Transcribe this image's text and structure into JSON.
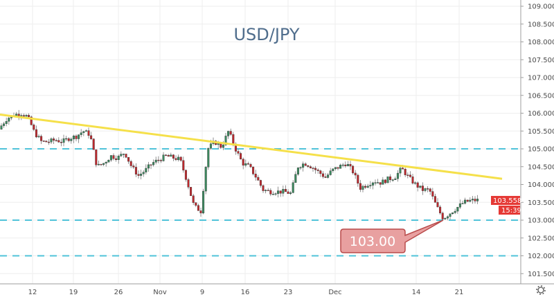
{
  "chart_data": {
    "type": "candlestick",
    "title": "USD/JPY",
    "y_ticks": [
      "109.000",
      "108.500",
      "108.000",
      "107.500",
      "107.000",
      "106.500",
      "106.000",
      "105.500",
      "105.000",
      "104.500",
      "104.000",
      "103.500",
      "103.000",
      "102.500",
      "102.000",
      "101.500"
    ],
    "ylim": [
      101.3,
      109.2
    ],
    "x_ticks": [
      "12",
      "19",
      "26",
      "Nov",
      "9",
      "16",
      "23",
      "Dec",
      "14",
      "21"
    ],
    "close_samples": [
      105.6,
      105.85,
      105.95,
      106.0,
      105.9,
      105.45,
      105.2,
      105.2,
      105.25,
      105.2,
      105.3,
      105.35,
      105.5,
      105.4,
      104.5,
      104.6,
      104.8,
      104.75,
      104.9,
      104.5,
      104.25,
      104.4,
      104.6,
      104.7,
      104.8,
      104.75,
      104.7,
      104.1,
      103.4,
      103.25,
      105.0,
      105.2,
      105.05,
      105.5,
      105.0,
      104.6,
      104.5,
      104.2,
      103.85,
      103.8,
      103.8,
      103.8,
      103.75,
      104.5,
      104.6,
      104.5,
      104.35,
      104.2,
      104.4,
      104.5,
      104.6,
      104.35,
      103.9,
      104.0,
      104.1,
      104.05,
      104.15,
      104.2,
      104.45,
      104.2,
      104.0,
      103.85,
      103.85,
      103.4,
      103.05,
      103.2,
      103.35,
      103.5,
      103.55,
      103.56
    ],
    "horizontal_levels": [
      105.0,
      103.0,
      102.0
    ],
    "trendline": {
      "start_price": 106.0,
      "end_price": 104.2
    },
    "callout": {
      "label": "103.00",
      "price": 103.0
    },
    "last_price": "103.558",
    "countdown": "15:39",
    "colors": {
      "up": "#3b8a5f",
      "down": "#c0282d",
      "trendline": "#f5e04a",
      "level": "#4fc3d9",
      "callout_bg": "#e8a0a0",
      "callout_border": "#b94a4a",
      "price_label": "#e53935"
    }
  }
}
